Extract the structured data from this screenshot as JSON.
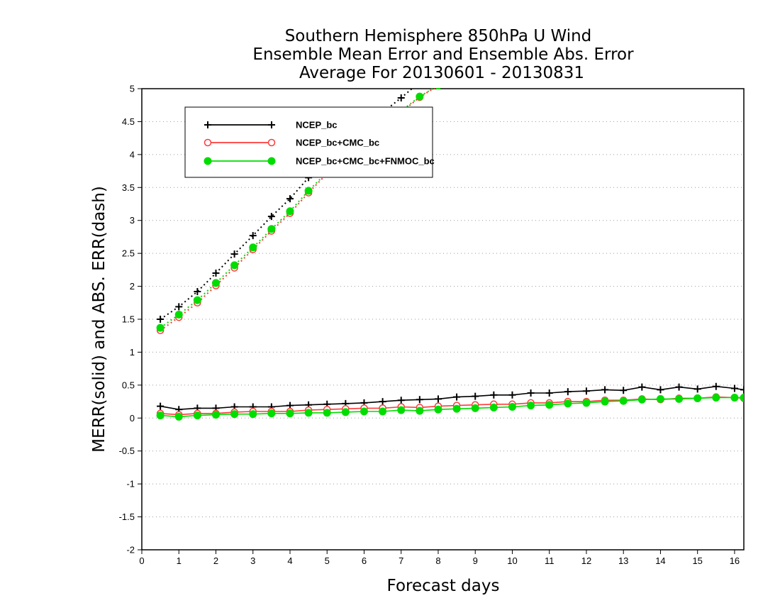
{
  "chart_data": {
    "type": "line",
    "title_lines": [
      "Southern Hemisphere 850hPa U Wind",
      "Ensemble Mean Error and Ensemble Abs. Error",
      "Average For 20130601 - 20130831"
    ],
    "xlabel": "Forecast days",
    "ylabel": "MERR(solid) and ABS. ERR(dash)",
    "xlim": [
      0,
      16.25
    ],
    "ylim": [
      -2,
      5
    ],
    "x_ticks": [
      "0",
      "1",
      "2",
      "3",
      "4",
      "5",
      "6",
      "7",
      "8",
      "9",
      "10",
      "11",
      "12",
      "13",
      "14",
      "15",
      "16"
    ],
    "y_ticks": [
      "5",
      "4.5",
      "4",
      "3.5",
      "3",
      "2.5",
      "2",
      "1.5",
      "1",
      "0.5",
      "0",
      "-0.5",
      "-1",
      "-1.5",
      "-2"
    ],
    "grid": "horizontal dotted",
    "legend_position": "upper-left",
    "x": [
      0.5,
      1,
      1.5,
      2,
      2.5,
      3,
      3.5,
      4,
      4.5,
      5,
      5.5,
      6,
      6.5,
      7,
      7.5,
      8,
      8.5,
      9,
      9.5,
      10,
      10.5,
      11,
      11.5,
      12,
      12.5,
      13,
      13.5,
      14,
      14.5,
      15,
      15.5,
      16,
      16.25
    ],
    "series": [
      {
        "name": "NCEP_bc",
        "color": "#000000",
        "marker": "plus",
        "mean_error": [
          0.18,
          0.13,
          0.15,
          0.15,
          0.17,
          0.17,
          0.17,
          0.19,
          0.2,
          0.21,
          0.22,
          0.23,
          0.25,
          0.27,
          0.28,
          0.29,
          0.32,
          0.33,
          0.35,
          0.35,
          0.38,
          0.38,
          0.4,
          0.41,
          0.43,
          0.42,
          0.47,
          0.43,
          0.47,
          0.44,
          0.48,
          0.45,
          0.43
        ],
        "abs_error": [
          1.5,
          1.69,
          1.92,
          2.2,
          2.49,
          2.77,
          3.06,
          3.33,
          3.65,
          3.95,
          4.2,
          4.42,
          4.64,
          4.86,
          5.1,
          5.3,
          null,
          null,
          null,
          null,
          null,
          null,
          null,
          null,
          null,
          null,
          null,
          null,
          null,
          null,
          null,
          null,
          null
        ]
      },
      {
        "name": "NCEP_bc+CMC_bc",
        "color": "#ff3b3b",
        "marker": "open-circle",
        "mean_error": [
          0.07,
          0.05,
          0.07,
          0.07,
          0.09,
          0.1,
          0.1,
          0.1,
          0.12,
          0.13,
          0.14,
          0.15,
          0.15,
          0.17,
          0.16,
          0.18,
          0.19,
          0.2,
          0.21,
          0.21,
          0.23,
          0.23,
          0.25,
          0.25,
          0.27,
          0.27,
          0.29,
          0.28,
          0.3,
          0.3,
          0.32,
          0.31,
          0.3
        ],
        "abs_error": [
          1.33,
          1.53,
          1.75,
          2.01,
          2.28,
          2.56,
          2.84,
          3.11,
          3.42,
          3.71,
          3.97,
          4.2,
          4.42,
          4.64,
          4.87,
          5.05,
          null,
          null,
          null,
          null,
          null,
          null,
          null,
          null,
          null,
          null,
          null,
          null,
          null,
          null,
          null,
          null,
          null
        ]
      },
      {
        "name": "NCEP_bc+CMC_bc+FNMOC_bc",
        "color": "#00dd00",
        "marker": "filled-circle",
        "mean_error": [
          0.04,
          0.02,
          0.04,
          0.05,
          0.06,
          0.06,
          0.07,
          0.07,
          0.08,
          0.08,
          0.09,
          0.1,
          0.1,
          0.12,
          0.11,
          0.13,
          0.14,
          0.15,
          0.16,
          0.17,
          0.19,
          0.2,
          0.22,
          0.23,
          0.25,
          0.26,
          0.28,
          0.29,
          0.29,
          0.3,
          0.31,
          0.31,
          0.31
        ],
        "abs_error": [
          1.37,
          1.57,
          1.79,
          2.05,
          2.32,
          2.59,
          2.87,
          3.14,
          3.45,
          3.73,
          3.99,
          4.22,
          4.44,
          4.66,
          4.88,
          5.05,
          null,
          null,
          null,
          null,
          null,
          null,
          null,
          null,
          null,
          null,
          null,
          null,
          null,
          null,
          null,
          null,
          null
        ]
      }
    ]
  }
}
